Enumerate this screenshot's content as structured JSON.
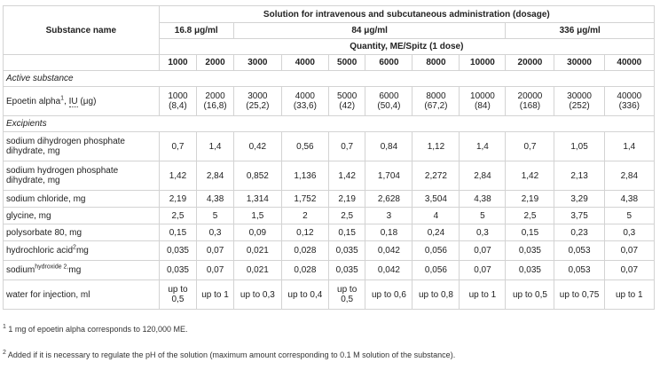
{
  "header": {
    "substance_label": "Substance name",
    "solution_label": "Solution for intravenous and subcutaneous administration (dosage)",
    "dosage_groups": [
      "16.8 μg/ml",
      "84 μg/ml",
      "336 μg/ml"
    ],
    "quantity_label": "Quantity, ME/Spitz (1 dose)",
    "doses": [
      "1000",
      "2000",
      "3000",
      "4000",
      "5000",
      "6000",
      "8000",
      "10000",
      "20000",
      "30000",
      "40000"
    ]
  },
  "sections": {
    "active": "Active substance",
    "excipients": "Excipients"
  },
  "active_row": {
    "name": "Epoetin alpha",
    "sup": "1",
    "comma": ",",
    "iu": "IU",
    "unit": "(μg)",
    "values": [
      "1000 (8,4)",
      "2000 (16,8)",
      "3000 (25,2)",
      "4000 (33,6)",
      "5000 (42)",
      "6000 (50,4)",
      "8000 (67,2)",
      "10000 (84)",
      "20000 (168)",
      "30000 (252)",
      "40000 (336)"
    ]
  },
  "excipients": [
    {
      "name": "sodium dihydrogen phosphate dihydrate, mg",
      "values": [
        "0,7",
        "1,4",
        "0,42",
        "0,56",
        "0,7",
        "0,84",
        "1,12",
        "1,4",
        "0,7",
        "1,05",
        "1,4"
      ]
    },
    {
      "name": "sodium hydrogen phosphate dihydrate, mg",
      "values": [
        "1,42",
        "2,84",
        "0,852",
        "1,136",
        "1,42",
        "1,704",
        "2,272",
        "2,84",
        "1,42",
        "2,13",
        "2,84"
      ]
    },
    {
      "name": "sodium chloride, mg",
      "values": [
        "2,19",
        "4,38",
        "1,314",
        "1,752",
        "2,19",
        "2,628",
        "3,504",
        "4,38",
        "2,19",
        "3,29",
        "4,38"
      ]
    },
    {
      "name": "glycine, mg",
      "values": [
        "2,5",
        "5",
        "1,5",
        "2",
        "2,5",
        "3",
        "4",
        "5",
        "2,5",
        "3,75",
        "5"
      ]
    },
    {
      "name": "polysorbate 80, mg",
      "values": [
        "0,15",
        "0,3",
        "0,09",
        "0,12",
        "0,15",
        "0,18",
        "0,24",
        "0,3",
        "0,15",
        "0,23",
        "0,3"
      ]
    }
  ],
  "acid_row": {
    "name": "hydrochloric acid",
    "sup": "2",
    "unit": "mg",
    "values": [
      "0,035",
      "0,07",
      "0,021",
      "0,028",
      "0,035",
      "0,042",
      "0,056",
      "0,07",
      "0,035",
      "0,053",
      "0,07"
    ]
  },
  "hydroxide_row": {
    "name_a": "sodium",
    "sup": "hydroxide 2,",
    "unit": "mg",
    "values": [
      "0,035",
      "0,07",
      "0,021",
      "0,028",
      "0,035",
      "0,042",
      "0,056",
      "0,07",
      "0,035",
      "0,053",
      "0,07"
    ]
  },
  "water_row": {
    "name": "water for injection, ml",
    "values": [
      "up to 0,5",
      "up to 1",
      "up to 0,3",
      "up to 0,4",
      "up to 0,5",
      "up to 0,6",
      "up to 0,8",
      "up to 1",
      "up to 0,5",
      "up to 0,75",
      "up to 1"
    ]
  },
  "footnotes": [
    {
      "mark": "1",
      "text": "1 mg of epoetin alpha corresponds to 120,000 ME."
    },
    {
      "mark": "2",
      "text": "Added if it is necessary to regulate the pH of the solution (maximum amount corresponding to 0.1 M solution of the substance)."
    }
  ]
}
